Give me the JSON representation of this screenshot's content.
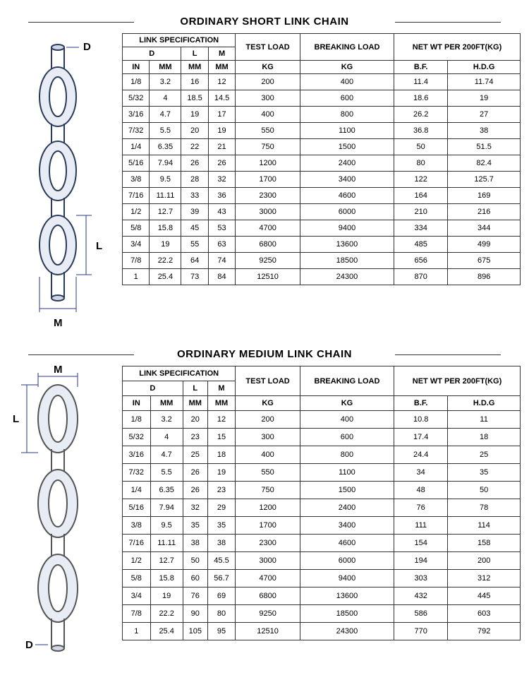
{
  "section1": {
    "title": "ORDINARY SHORT LINK CHAIN",
    "diagram": {
      "labels": {
        "D": "D",
        "L": "L",
        "M": "M"
      }
    },
    "headers": {
      "linkSpec": "LINK SPECIFICATION",
      "D": "D",
      "L": "L",
      "M": "M",
      "IN": "IN",
      "MM1": "MM",
      "MM2": "MM",
      "MM3": "MM",
      "testLoad": "TEST LOAD",
      "breakingLoad": "BREAKING LOAD",
      "netWt": "NET WT PER 200FT(KG)",
      "KG1": "KG",
      "KG2": "KG",
      "BF": "B.F.",
      "HDG": "H.D.G"
    },
    "rows": [
      [
        "1/8",
        "3.2",
        "16",
        "12",
        "200",
        "400",
        "11.4",
        "11.74"
      ],
      [
        "5/32",
        "4",
        "18.5",
        "14.5",
        "300",
        "600",
        "18.6",
        "19"
      ],
      [
        "3/16",
        "4.7",
        "19",
        "17",
        "400",
        "800",
        "26.2",
        "27"
      ],
      [
        "7/32",
        "5.5",
        "20",
        "19",
        "550",
        "1100",
        "36.8",
        "38"
      ],
      [
        "1/4",
        "6.35",
        "22",
        "21",
        "750",
        "1500",
        "50",
        "51.5"
      ],
      [
        "5/16",
        "7.94",
        "26",
        "26",
        "1200",
        "2400",
        "80",
        "82.4"
      ],
      [
        "3/8",
        "9.5",
        "28",
        "32",
        "1700",
        "3400",
        "122",
        "125.7"
      ],
      [
        "7/16",
        "11.11",
        "33",
        "36",
        "2300",
        "4600",
        "164",
        "169"
      ],
      [
        "1/2",
        "12.7",
        "39",
        "43",
        "3000",
        "6000",
        "210",
        "216"
      ],
      [
        "5/8",
        "15.8",
        "45",
        "53",
        "4700",
        "9400",
        "334",
        "344"
      ],
      [
        "3/4",
        "19",
        "55",
        "63",
        "6800",
        "13600",
        "485",
        "499"
      ],
      [
        "7/8",
        "22.2",
        "64",
        "74",
        "9250",
        "18500",
        "656",
        "675"
      ],
      [
        "1",
        "25.4",
        "73",
        "84",
        "12510",
        "24300",
        "870",
        "896"
      ]
    ]
  },
  "section2": {
    "title": "ORDINARY MEDIUM LINK CHAIN",
    "diagram": {
      "labels": {
        "D": "D",
        "L": "L",
        "M": "M"
      }
    },
    "headers": {
      "linkSpec": "LINK SPECIFICATION",
      "D": "D",
      "L": "L",
      "M": "M",
      "IN": "IN",
      "MM1": "MM",
      "MM2": "MM",
      "MM3": "MM",
      "testLoad": "TEST LOAD",
      "breakingLoad": "BREAKING LOAD",
      "netWt": "NET WT PER 200FT(KG)",
      "KG1": "KG",
      "KG2": "KG",
      "BF": "B.F.",
      "HDG": "H.D.G"
    },
    "rows": [
      [
        "1/8",
        "3.2",
        "20",
        "12",
        "200",
        "400",
        "10.8",
        "11"
      ],
      [
        "5/32",
        "4",
        "23",
        "15",
        "300",
        "600",
        "17.4",
        "18"
      ],
      [
        "3/16",
        "4.7",
        "25",
        "18",
        "400",
        "800",
        "24.4",
        "25"
      ],
      [
        "7/32",
        "5.5",
        "26",
        "19",
        "550",
        "1100",
        "34",
        "35"
      ],
      [
        "1/4",
        "6.35",
        "26",
        "23",
        "750",
        "1500",
        "48",
        "50"
      ],
      [
        "5/16",
        "7.94",
        "32",
        "29",
        "1200",
        "2400",
        "76",
        "78"
      ],
      [
        "3/8",
        "9.5",
        "35",
        "35",
        "1700",
        "3400",
        "111",
        "114"
      ],
      [
        "7/16",
        "11.11",
        "38",
        "38",
        "2300",
        "4600",
        "154",
        "158"
      ],
      [
        "1/2",
        "12.7",
        "50",
        "45.5",
        "3000",
        "6000",
        "194",
        "200"
      ],
      [
        "5/8",
        "15.8",
        "60",
        "56.7",
        "4700",
        "9400",
        "303",
        "312"
      ],
      [
        "3/4",
        "19",
        "76",
        "69",
        "6800",
        "13600",
        "432",
        "445"
      ],
      [
        "7/8",
        "22.2",
        "90",
        "80",
        "9250",
        "18500",
        "586",
        "603"
      ],
      [
        "1",
        "25.4",
        "105",
        "95",
        "12510",
        "24300",
        "770",
        "792"
      ]
    ]
  },
  "style": {
    "border_color": "#333333",
    "text_color": "#000000",
    "bg_color": "#ffffff",
    "diagram_stroke": "#2a3a5a",
    "diagram_fill": "#e8ecf4",
    "dim_color": "#2a3a8a",
    "font_size_header": 15,
    "font_size_cell": 11
  }
}
